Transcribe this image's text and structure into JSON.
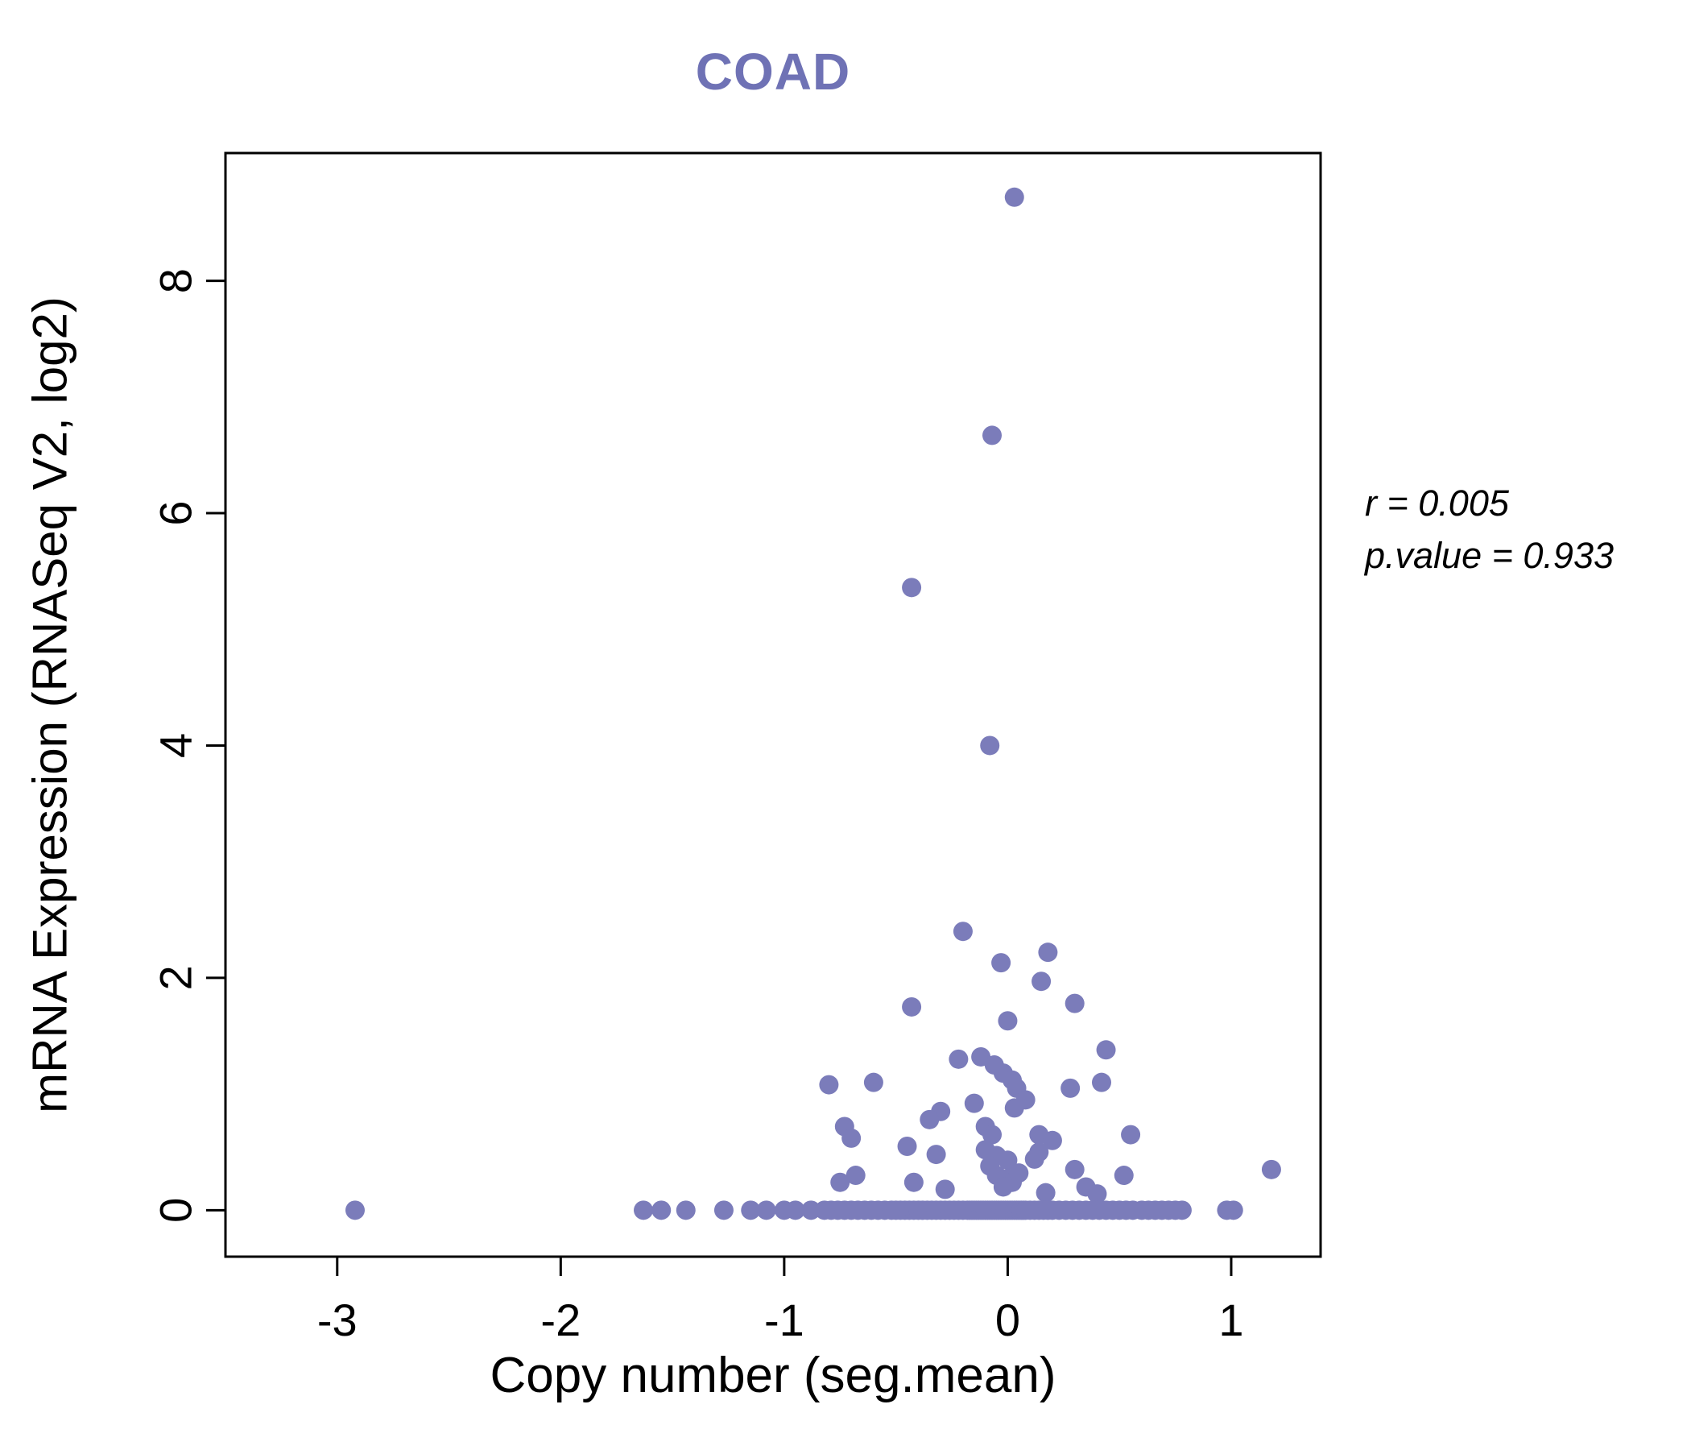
{
  "title": "COAD",
  "colors": {
    "accent": "#6f72b5",
    "points": "#7b7cba",
    "axis": "#000000"
  },
  "annotation": {
    "line1": "r = 0.005",
    "line2": "p.value = 0.933"
  },
  "chart_data": {
    "type": "scatter",
    "title": "COAD",
    "xlabel": "Copy number (seg.mean)",
    "ylabel": "mRNA Expression (RNASeq V2, log2)",
    "xlim": [
      -3.5,
      1.4
    ],
    "ylim": [
      -0.4,
      9.1
    ],
    "xticks": [
      -3,
      -2,
      -1,
      0,
      1
    ],
    "yticks": [
      0,
      2,
      4,
      6,
      8
    ],
    "grid": false,
    "legend": false,
    "point_color": "#7b7cba",
    "correlation": {
      "r": 0.005,
      "p_value": 0.933
    },
    "points": [
      [
        0.03,
        8.72
      ],
      [
        -0.07,
        6.67
      ],
      [
        -0.43,
        5.36
      ],
      [
        -0.08,
        4.0
      ],
      [
        -0.2,
        2.4
      ],
      [
        0.18,
        2.22
      ],
      [
        -0.03,
        2.13
      ],
      [
        0.15,
        1.97
      ],
      [
        -0.43,
        1.75
      ],
      [
        0.3,
        1.78
      ],
      [
        0.0,
        1.63
      ],
      [
        0.44,
        1.38
      ],
      [
        -0.22,
        1.3
      ],
      [
        -0.12,
        1.32
      ],
      [
        -0.06,
        1.25
      ],
      [
        -0.02,
        1.18
      ],
      [
        0.02,
        1.12
      ],
      [
        -0.8,
        1.08
      ],
      [
        -0.6,
        1.1
      ],
      [
        0.28,
        1.05
      ],
      [
        0.42,
        1.1
      ],
      [
        0.04,
        1.05
      ],
      [
        -0.15,
        0.92
      ],
      [
        -0.3,
        0.85
      ],
      [
        0.08,
        0.95
      ],
      [
        0.03,
        0.88
      ],
      [
        -0.73,
        0.72
      ],
      [
        -0.7,
        0.62
      ],
      [
        -0.35,
        0.78
      ],
      [
        -0.1,
        0.72
      ],
      [
        -0.07,
        0.65
      ],
      [
        0.14,
        0.65
      ],
      [
        0.55,
        0.65
      ],
      [
        0.2,
        0.6
      ],
      [
        -0.45,
        0.55
      ],
      [
        -0.32,
        0.48
      ],
      [
        -0.1,
        0.52
      ],
      [
        -0.05,
        0.47
      ],
      [
        0.0,
        0.43
      ],
      [
        0.14,
        0.5
      ],
      [
        0.12,
        0.44
      ],
      [
        -0.08,
        0.38
      ],
      [
        0.3,
        0.35
      ],
      [
        -0.68,
        0.3
      ],
      [
        -0.75,
        0.24
      ],
      [
        -0.42,
        0.24
      ],
      [
        -0.05,
        0.3
      ],
      [
        0.0,
        0.27
      ],
      [
        0.02,
        0.24
      ],
      [
        0.05,
        0.32
      ],
      [
        -0.02,
        0.2
      ],
      [
        -0.28,
        0.18
      ],
      [
        0.17,
        0.15
      ],
      [
        0.35,
        0.2
      ],
      [
        0.4,
        0.14
      ],
      [
        0.52,
        0.3
      ],
      [
        1.18,
        0.35
      ],
      [
        -2.92,
        0
      ],
      [
        -1.63,
        0
      ],
      [
        -1.55,
        0
      ],
      [
        -1.44,
        0
      ],
      [
        -1.27,
        0
      ],
      [
        -1.15,
        0
      ],
      [
        -1.08,
        0
      ],
      [
        -1.0,
        0
      ],
      [
        -0.95,
        0
      ],
      [
        -0.88,
        0
      ],
      [
        -0.82,
        0
      ],
      [
        -0.79,
        0
      ],
      [
        -0.76,
        0
      ],
      [
        -0.73,
        0
      ],
      [
        -0.7,
        0
      ],
      [
        -0.67,
        0
      ],
      [
        -0.64,
        0
      ],
      [
        -0.61,
        0
      ],
      [
        -0.58,
        0
      ],
      [
        -0.55,
        0
      ],
      [
        -0.52,
        0
      ],
      [
        -0.5,
        0
      ],
      [
        -0.48,
        0
      ],
      [
        -0.46,
        0
      ],
      [
        -0.44,
        0
      ],
      [
        -0.42,
        0
      ],
      [
        -0.4,
        0
      ],
      [
        -0.38,
        0
      ],
      [
        -0.36,
        0
      ],
      [
        -0.34,
        0
      ],
      [
        -0.32,
        0
      ],
      [
        -0.3,
        0
      ],
      [
        -0.28,
        0
      ],
      [
        -0.26,
        0
      ],
      [
        -0.24,
        0
      ],
      [
        -0.22,
        0
      ],
      [
        -0.2,
        0
      ],
      [
        -0.18,
        0
      ],
      [
        -0.17,
        0
      ],
      [
        -0.16,
        0
      ],
      [
        -0.15,
        0
      ],
      [
        -0.14,
        0
      ],
      [
        -0.13,
        0
      ],
      [
        -0.12,
        0
      ],
      [
        -0.11,
        0
      ],
      [
        -0.1,
        0
      ],
      [
        -0.09,
        0
      ],
      [
        -0.08,
        0
      ],
      [
        -0.07,
        0
      ],
      [
        -0.06,
        0
      ],
      [
        -0.05,
        0
      ],
      [
        -0.04,
        0
      ],
      [
        -0.03,
        0
      ],
      [
        -0.02,
        0
      ],
      [
        -0.01,
        0
      ],
      [
        0.0,
        0
      ],
      [
        0.01,
        0
      ],
      [
        0.02,
        0
      ],
      [
        0.03,
        0
      ],
      [
        0.04,
        0
      ],
      [
        0.05,
        0
      ],
      [
        0.06,
        0
      ],
      [
        0.07,
        0
      ],
      [
        0.08,
        0
      ],
      [
        0.1,
        0
      ],
      [
        0.12,
        0
      ],
      [
        0.14,
        0
      ],
      [
        0.16,
        0
      ],
      [
        0.18,
        0
      ],
      [
        0.2,
        0
      ],
      [
        0.23,
        0
      ],
      [
        0.26,
        0
      ],
      [
        0.29,
        0
      ],
      [
        0.32,
        0
      ],
      [
        0.35,
        0
      ],
      [
        0.38,
        0
      ],
      [
        0.41,
        0
      ],
      [
        0.44,
        0
      ],
      [
        0.47,
        0
      ],
      [
        0.5,
        0
      ],
      [
        0.53,
        0
      ],
      [
        0.56,
        0
      ],
      [
        0.6,
        0
      ],
      [
        0.63,
        0
      ],
      [
        0.66,
        0
      ],
      [
        0.69,
        0
      ],
      [
        0.72,
        0
      ],
      [
        0.75,
        0
      ],
      [
        0.78,
        0
      ],
      [
        0.98,
        0
      ],
      [
        1.01,
        0
      ]
    ]
  }
}
